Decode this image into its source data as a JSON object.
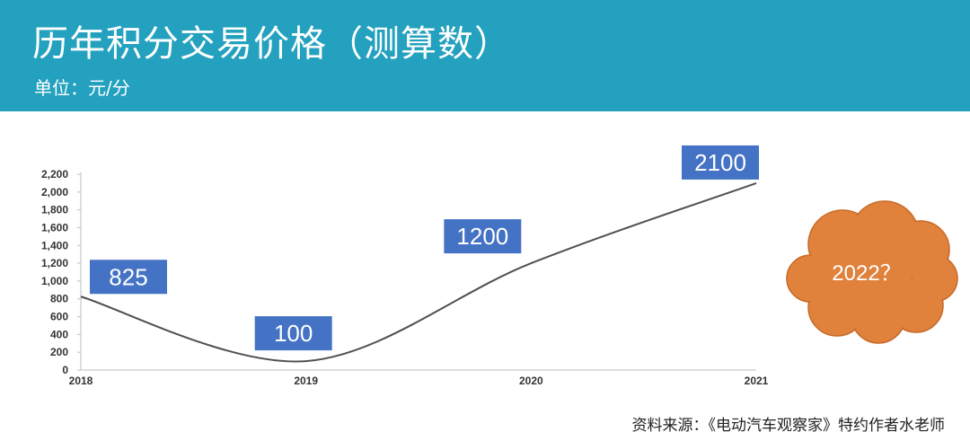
{
  "header": {
    "title": "历年积分交易价格（测算数）",
    "unit": "单位：元/分"
  },
  "source": "资料来源：《电动汽车观察家》特约作者水老师",
  "colors": {
    "header": "#23a1bf",
    "label_box": "#4472c4",
    "line": "#505050",
    "cloud": "#e0813c"
  },
  "cloud_label": "2022？",
  "chart_data": {
    "type": "line",
    "x": [
      "2018",
      "2019",
      "2020",
      "2021"
    ],
    "values": [
      825,
      100,
      1200,
      2100
    ],
    "data_labels": [
      "825",
      "100",
      "1200",
      "2100"
    ],
    "y_ticks": [
      "0",
      "200",
      "400",
      "600",
      "800",
      "1,000",
      "1,200",
      "1,400",
      "1,600",
      "1,800",
      "2,000",
      "2,200"
    ],
    "ylim": [
      0,
      2200
    ],
    "smooth": true,
    "grid": false
  }
}
